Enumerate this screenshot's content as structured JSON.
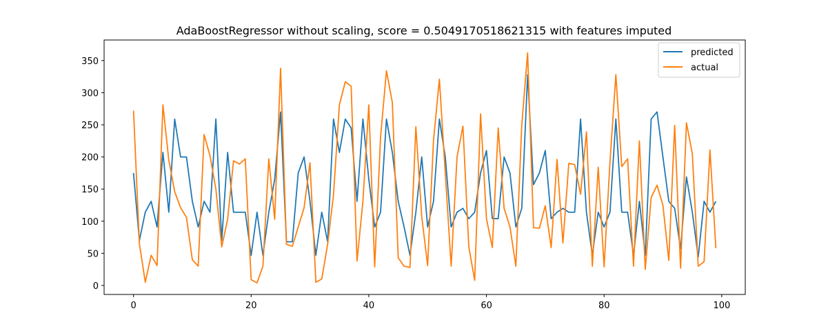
{
  "chart_data": {
    "type": "line",
    "title": "AdaBoostRegressor  without scaling, score = 0.5049170518621315 with features imputed",
    "xlabel": "",
    "ylabel": "",
    "xlim": [
      -5,
      104
    ],
    "ylim": [
      -14,
      382
    ],
    "xticks": [
      0,
      20,
      40,
      60,
      80,
      100
    ],
    "yticks": [
      0,
      50,
      100,
      150,
      200,
      250,
      300,
      350
    ],
    "grid": false,
    "legend_position": "upper right",
    "x": [
      0,
      1,
      2,
      3,
      4,
      5,
      6,
      7,
      8,
      9,
      10,
      11,
      12,
      13,
      14,
      15,
      16,
      17,
      18,
      19,
      20,
      21,
      22,
      23,
      24,
      25,
      26,
      27,
      28,
      29,
      30,
      31,
      32,
      33,
      34,
      35,
      36,
      37,
      38,
      39,
      40,
      41,
      42,
      43,
      44,
      45,
      46,
      47,
      48,
      49,
      50,
      51,
      52,
      53,
      54,
      55,
      56,
      57,
      58,
      59,
      60,
      61,
      62,
      63,
      64,
      65,
      66,
      67,
      68,
      69,
      70,
      71,
      72,
      73,
      74,
      75,
      76,
      77,
      78,
      79,
      80,
      81,
      82,
      83,
      84,
      85,
      86,
      87,
      88,
      89,
      90,
      91,
      92,
      93,
      94,
      95,
      96,
      97,
      98,
      99
    ],
    "series": [
      {
        "name": "predicted",
        "color": "#1f77b4",
        "values": [
          175,
          70,
          114,
          131,
          91,
          207,
          114,
          259,
          200,
          200,
          131,
          91,
          131,
          114,
          259,
          70,
          207,
          114,
          114,
          114,
          47,
          114,
          47,
          114,
          165,
          270,
          68,
          68,
          175,
          200,
          131,
          47,
          114,
          68,
          259,
          207,
          259,
          245,
          131,
          259,
          165,
          91,
          114,
          259,
          207,
          131,
          91,
          47,
          114,
          200,
          91,
          131,
          259,
          200,
          91,
          114,
          120,
          104,
          114,
          175,
          210,
          104,
          104,
          200,
          175,
          91,
          120,
          328,
          157,
          175,
          210,
          104,
          114,
          120,
          114,
          114,
          259,
          114,
          47,
          114,
          91,
          114,
          259,
          114,
          114,
          47,
          131,
          47,
          259,
          270,
          200,
          131,
          120,
          57,
          169,
          114,
          44,
          131,
          114,
          131
        ]
      },
      {
        "name": "actual",
        "color": "#ff7f0e",
        "values": [
          272,
          65,
          5,
          47,
          31,
          281,
          195,
          146,
          121,
          106,
          40,
          30,
          235,
          202,
          150,
          60,
          103,
          194,
          189,
          197,
          9,
          4,
          30,
          197,
          103,
          338,
          64,
          61,
          91,
          121,
          191,
          5,
          10,
          64,
          141,
          281,
          317,
          310,
          38,
          131,
          281,
          29,
          231,
          334,
          285,
          43,
          30,
          28,
          247,
          107,
          31,
          226,
          321,
          175,
          30,
          200,
          248,
          60,
          8,
          267,
          104,
          59,
          245,
          120,
          91,
          30,
          249,
          362,
          90,
          89,
          124,
          59,
          196,
          66,
          190,
          188,
          142,
          239,
          30,
          184,
          29,
          192,
          328,
          185,
          197,
          30,
          225,
          25,
          137,
          156,
          125,
          39,
          249,
          27,
          253,
          205,
          30,
          37,
          211,
          58
        ]
      }
    ]
  }
}
